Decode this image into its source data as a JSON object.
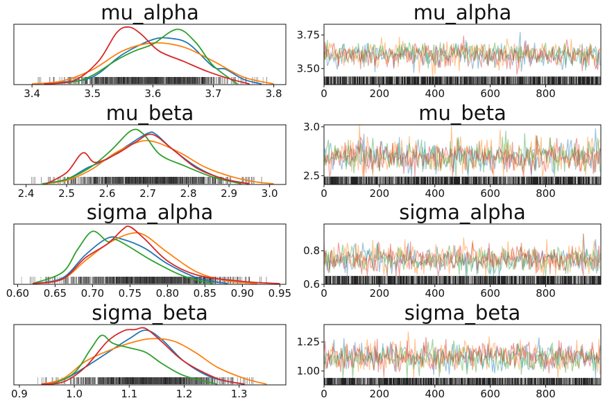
{
  "chart_data": [
    {
      "type": "density",
      "title": "mu_alpha",
      "xticks": [
        "3.4",
        "3.5",
        "3.6",
        "3.7",
        "3.8"
      ],
      "xlim": [
        3.37,
        3.82
      ],
      "series": [
        {
          "color": "#1f77b4",
          "x": [
            3.4,
            3.45,
            3.5,
            3.55,
            3.6,
            3.63,
            3.66,
            3.7,
            3.72,
            3.75,
            3.78
          ],
          "y": [
            0.0,
            0.03,
            0.12,
            0.52,
            0.78,
            0.8,
            0.7,
            0.3,
            0.26,
            0.08,
            0.0
          ]
        },
        {
          "color": "#ff7f0e",
          "x": [
            3.4,
            3.45,
            3.5,
            3.55,
            3.6,
            3.65,
            3.7,
            3.75,
            3.8
          ],
          "y": [
            0.0,
            0.05,
            0.25,
            0.58,
            0.72,
            0.65,
            0.4,
            0.12,
            0.0
          ]
        },
        {
          "color": "#2ca02c",
          "x": [
            3.42,
            3.47,
            3.5,
            3.54,
            3.57,
            3.6,
            3.64,
            3.67,
            3.7,
            3.74
          ],
          "y": [
            0.0,
            0.04,
            0.15,
            0.42,
            0.58,
            0.7,
            0.96,
            0.74,
            0.32,
            0.0
          ]
        },
        {
          "color": "#d62728",
          "x": [
            3.42,
            3.47,
            3.51,
            3.54,
            3.56,
            3.58,
            3.61,
            3.65,
            3.69,
            3.73,
            3.76
          ],
          "y": [
            0.0,
            0.06,
            0.4,
            0.9,
            1.0,
            0.88,
            0.58,
            0.4,
            0.22,
            0.08,
            0.0
          ]
        }
      ]
    },
    {
      "type": "line",
      "title": "mu_alpha",
      "xticks": [
        "0",
        "200",
        "400",
        "600",
        "800"
      ],
      "xlim": [
        0,
        999
      ],
      "ylim": [
        3.38,
        3.83
      ],
      "yticks": [
        "3.50",
        "3.75"
      ],
      "rug_from": 3.38,
      "rug_to": 3.44,
      "series": [
        {
          "color": "#1f77b4",
          "mean": 3.6,
          "sd": 0.05
        },
        {
          "color": "#ff7f0e",
          "mean": 3.61,
          "sd": 0.055
        },
        {
          "color": "#2ca02c",
          "mean": 3.62,
          "sd": 0.045
        },
        {
          "color": "#d62728",
          "mean": 3.6,
          "sd": 0.045
        }
      ]
    },
    {
      "type": "density",
      "title": "mu_beta",
      "xticks": [
        "2.4",
        "2.5",
        "2.6",
        "2.7",
        "2.8",
        "2.9",
        "3.0"
      ],
      "xlim": [
        2.37,
        3.04
      ],
      "series": [
        {
          "color": "#1f77b4",
          "x": [
            2.44,
            2.5,
            2.55,
            2.6,
            2.65,
            2.7,
            2.72,
            2.76,
            2.82,
            2.88,
            2.95
          ],
          "y": [
            0.0,
            0.08,
            0.28,
            0.44,
            0.68,
            0.9,
            0.88,
            0.62,
            0.3,
            0.1,
            0.0
          ]
        },
        {
          "color": "#ff7f0e",
          "x": [
            2.44,
            2.5,
            2.56,
            2.62,
            2.68,
            2.72,
            2.78,
            2.84,
            2.9,
            2.96,
            3.01
          ],
          "y": [
            0.0,
            0.06,
            0.25,
            0.55,
            0.75,
            0.74,
            0.55,
            0.3,
            0.14,
            0.04,
            0.0
          ]
        },
        {
          "color": "#2ca02c",
          "x": [
            2.44,
            2.5,
            2.56,
            2.61,
            2.66,
            2.69,
            2.73,
            2.79,
            2.86,
            2.93
          ],
          "y": [
            0.0,
            0.08,
            0.3,
            0.6,
            0.95,
            0.88,
            0.52,
            0.32,
            0.12,
            0.0
          ]
        },
        {
          "color": "#d62728",
          "x": [
            2.45,
            2.5,
            2.54,
            2.57,
            2.62,
            2.67,
            2.71,
            2.76,
            2.82,
            2.89,
            2.95
          ],
          "y": [
            0.0,
            0.2,
            0.55,
            0.38,
            0.52,
            0.74,
            0.88,
            0.62,
            0.28,
            0.08,
            0.0
          ]
        }
      ]
    },
    {
      "type": "line",
      "title": "mu_beta",
      "xticks": [
        "0",
        "200",
        "400",
        "600",
        "800"
      ],
      "xlim": [
        0,
        999
      ],
      "ylim": [
        2.41,
        3.02
      ],
      "yticks": [
        "2.5",
        "3.0"
      ],
      "rug_from": 2.41,
      "rug_to": 2.49,
      "series": [
        {
          "color": "#1f77b4",
          "mean": 2.69,
          "sd": 0.09
        },
        {
          "color": "#ff7f0e",
          "mean": 2.7,
          "sd": 0.1
        },
        {
          "color": "#2ca02c",
          "mean": 2.69,
          "sd": 0.085
        },
        {
          "color": "#d62728",
          "mean": 2.7,
          "sd": 0.09
        }
      ]
    },
    {
      "type": "density",
      "title": "sigma_alpha",
      "xticks": [
        "0.60",
        "0.65",
        "0.70",
        "0.75",
        "0.80",
        "0.85",
        "0.90",
        "0.95"
      ],
      "xlim": [
        0.595,
        0.958
      ],
      "series": [
        {
          "color": "#1f77b4",
          "x": [
            0.62,
            0.66,
            0.69,
            0.72,
            0.74,
            0.77,
            0.8,
            0.84,
            0.88
          ],
          "y": [
            0.0,
            0.1,
            0.5,
            0.8,
            0.78,
            0.62,
            0.35,
            0.1,
            0.0
          ]
        },
        {
          "color": "#ff7f0e",
          "x": [
            0.62,
            0.66,
            0.69,
            0.72,
            0.75,
            0.77,
            0.8,
            0.84,
            0.88,
            0.92
          ],
          "y": [
            0.0,
            0.08,
            0.4,
            0.7,
            0.88,
            0.85,
            0.55,
            0.2,
            0.05,
            0.0
          ]
        },
        {
          "color": "#2ca02c",
          "x": [
            0.62,
            0.66,
            0.68,
            0.7,
            0.72,
            0.73,
            0.75,
            0.78,
            0.82,
            0.86
          ],
          "y": [
            0.0,
            0.2,
            0.6,
            0.92,
            0.74,
            0.78,
            0.64,
            0.4,
            0.14,
            0.0
          ]
        },
        {
          "color": "#d62728",
          "x": [
            0.62,
            0.66,
            0.69,
            0.72,
            0.74,
            0.75,
            0.77,
            0.8,
            0.84,
            0.9,
            0.95
          ],
          "y": [
            0.0,
            0.08,
            0.45,
            0.7,
            0.95,
            1.0,
            0.78,
            0.4,
            0.15,
            0.04,
            0.0
          ]
        }
      ]
    },
    {
      "type": "line",
      "title": "sigma_alpha",
      "xticks": [
        "0",
        "200",
        "400",
        "600",
        "800"
      ],
      "xlim": [
        0,
        999
      ],
      "ylim": [
        0.6,
        0.96
      ],
      "yticks": [
        "0.6",
        "0.8"
      ],
      "rug_from": 0.6,
      "rug_to": 0.65,
      "series": [
        {
          "color": "#1f77b4",
          "mean": 0.75,
          "sd": 0.045
        },
        {
          "color": "#ff7f0e",
          "mean": 0.755,
          "sd": 0.05
        },
        {
          "color": "#2ca02c",
          "mean": 0.745,
          "sd": 0.04
        },
        {
          "color": "#d62728",
          "mean": 0.75,
          "sd": 0.04
        }
      ]
    },
    {
      "type": "density",
      "title": "sigma_beta",
      "xticks": [
        "0.9",
        "1.0",
        "1.1",
        "1.2",
        "1.3"
      ],
      "xlim": [
        0.89,
        1.385
      ],
      "series": [
        {
          "color": "#1f77b4",
          "x": [
            0.94,
            0.98,
            1.02,
            1.06,
            1.1,
            1.13,
            1.16,
            1.2,
            1.25,
            1.31
          ],
          "y": [
            0.0,
            0.08,
            0.3,
            0.55,
            0.8,
            0.95,
            0.78,
            0.4,
            0.12,
            0.0
          ]
        },
        {
          "color": "#ff7f0e",
          "x": [
            0.94,
            0.98,
            1.02,
            1.06,
            1.1,
            1.14,
            1.18,
            1.22,
            1.26,
            1.31,
            1.35
          ],
          "y": [
            0.0,
            0.1,
            0.4,
            0.58,
            0.72,
            0.8,
            0.76,
            0.56,
            0.3,
            0.1,
            0.0
          ]
        },
        {
          "color": "#2ca02c",
          "x": [
            0.96,
            1.0,
            1.03,
            1.05,
            1.07,
            1.1,
            1.13,
            1.16,
            1.2,
            1.26
          ],
          "y": [
            0.0,
            0.2,
            0.62,
            0.86,
            0.72,
            0.64,
            0.56,
            0.36,
            0.15,
            0.0
          ]
        },
        {
          "color": "#d62728",
          "x": [
            0.94,
            0.98,
            1.02,
            1.06,
            1.09,
            1.11,
            1.13,
            1.16,
            1.2,
            1.26,
            1.31
          ],
          "y": [
            0.0,
            0.04,
            0.3,
            0.75,
            0.94,
            0.96,
            0.98,
            0.74,
            0.4,
            0.1,
            0.0
          ]
        }
      ]
    },
    {
      "type": "line",
      "title": "sigma_beta",
      "xticks": [
        "0",
        "200",
        "400",
        "600",
        "800"
      ],
      "xlim": [
        0,
        999
      ],
      "ylim": [
        0.88,
        1.4
      ],
      "yticks": [
        "1.00",
        "1.25"
      ],
      "rug_from": 0.88,
      "rug_to": 0.94,
      "series": [
        {
          "color": "#1f77b4",
          "mean": 1.12,
          "sd": 0.07
        },
        {
          "color": "#ff7f0e",
          "mean": 1.13,
          "sd": 0.075
        },
        {
          "color": "#2ca02c",
          "mean": 1.11,
          "sd": 0.065
        },
        {
          "color": "#d62728",
          "mean": 1.12,
          "sd": 0.065
        }
      ]
    }
  ]
}
